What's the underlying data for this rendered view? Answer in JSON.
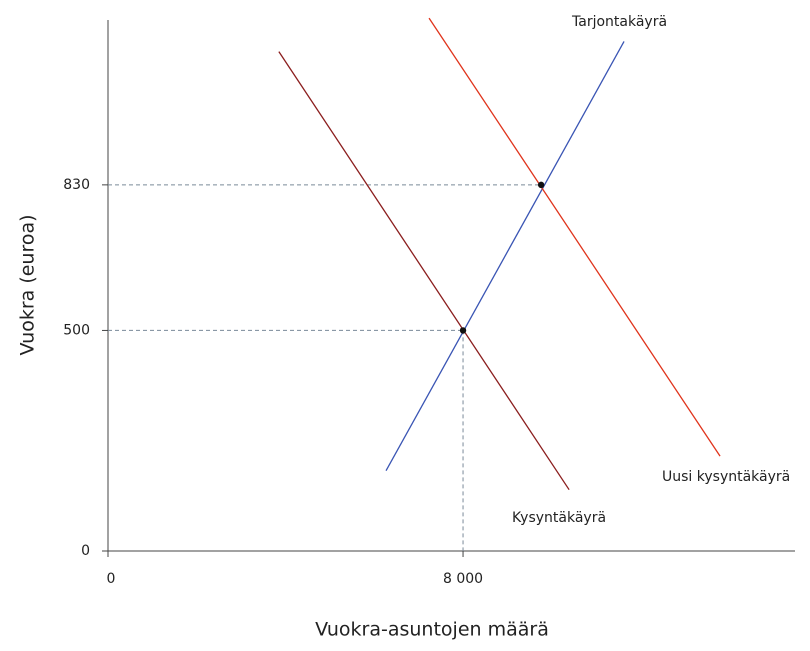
{
  "chart_data": {
    "type": "line",
    "x_label": "Vuokra-asuntojen määrä",
    "y_label": "Vuokra (euroa)",
    "xlim": [
      0,
      15480
    ],
    "ylim": [
      0,
      1240
    ],
    "xticks": [
      0,
      {
        "value": 8000,
        "label": "8 000"
      }
    ],
    "yticks": [
      0,
      500,
      830
    ],
    "series": [
      {
        "name": "Kysyntäkäyrä",
        "color": "#8b1e1e",
        "x": [
          3850,
          10390
        ],
        "values": [
          1132,
          139
        ]
      },
      {
        "name": "Tarjontakäyrä",
        "color": "#3a55b4",
        "x": [
          6265,
          11628
        ],
        "values": [
          182,
          1155
        ]
      },
      {
        "name": "Uusi kysyntäkäyrä",
        "color": "#e0341c",
        "x": [
          7234,
          13791
        ],
        "values": [
          1208,
          215
        ]
      }
    ],
    "points": {
      "x": [
        8000,
        9760
      ],
      "values": [
        500,
        830
      ],
      "color": "#111111"
    }
  }
}
